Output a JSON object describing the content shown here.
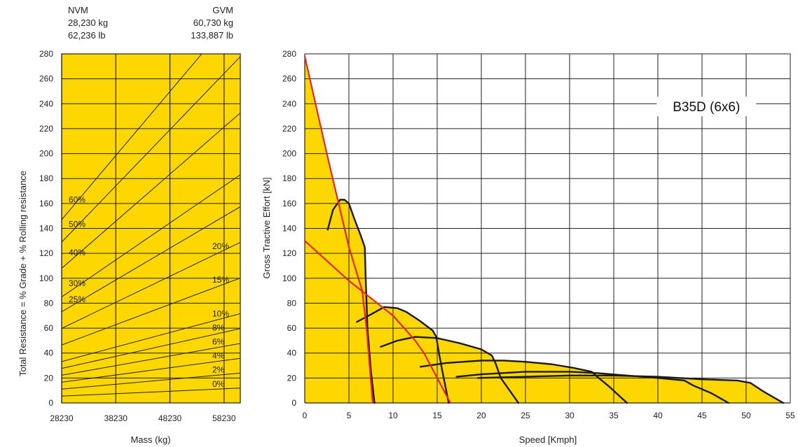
{
  "header": {
    "nvm": {
      "label": "NVM",
      "kg": "28,230 kg",
      "lb": "62,236 lb"
    },
    "gvm": {
      "label": "GVM",
      "kg": "60,730 kg",
      "lb": "133,887 lb"
    }
  },
  "colors": {
    "fill": "#FFD700",
    "grid": "#222222",
    "gear_curve": "#1a1a1a",
    "limit_curve": "#e8261c"
  },
  "chart_data": [
    {
      "type": "line",
      "xlabel": "Mass (kg)",
      "ylabel": "Total Resistance = % Grade + % Rolling resistance",
      "xlim": [
        28230,
        61230
      ],
      "ylim": [
        0,
        280
      ],
      "x_ticks": [
        "28230",
        "38230",
        "48230",
        "58230"
      ],
      "y_ticks": [
        "0",
        "20",
        "40",
        "60",
        "80",
        "100",
        "120",
        "140",
        "160",
        "180",
        "200",
        "220",
        "240",
        "260",
        "280"
      ],
      "grid": true,
      "series": [
        {
          "name": "0%",
          "label_side": "right",
          "x": [
            28230,
            61230
          ],
          "y": [
            5.5,
            11.9
          ]
        },
        {
          "name": "2%",
          "label_side": "right",
          "x": [
            28230,
            61230
          ],
          "y": [
            11.1,
            23.9
          ]
        },
        {
          "name": "4%",
          "label_side": "right",
          "x": [
            28230,
            61230
          ],
          "y": [
            16.6,
            35.8
          ]
        },
        {
          "name": "6%",
          "label_side": "right",
          "x": [
            28230,
            61230
          ],
          "y": [
            22.2,
            47.7
          ]
        },
        {
          "name": "8%",
          "label_side": "right",
          "x": [
            28230,
            61230
          ],
          "y": [
            27.7,
            59.6
          ]
        },
        {
          "name": "10%",
          "label_side": "right",
          "x": [
            28230,
            61230
          ],
          "y": [
            33.2,
            71.6
          ]
        },
        {
          "name": "15%",
          "label_side": "right",
          "x": [
            28230,
            61230
          ],
          "y": [
            46.5,
            100.2
          ]
        },
        {
          "name": "20%",
          "label_side": "right",
          "x": [
            28230,
            61230
          ],
          "y": [
            59.8,
            128.8
          ]
        },
        {
          "name": "25%",
          "label_side": "left",
          "x": [
            28230,
            61230
          ],
          "y": [
            73.1,
            157.4
          ]
        },
        {
          "name": "30%",
          "label_side": "left",
          "x": [
            28230,
            61230
          ],
          "y": [
            85.0,
            183.0
          ]
        },
        {
          "name": "40%",
          "label_side": "left",
          "x": [
            28230,
            61230
          ],
          "y": [
            108.0,
            232.6
          ]
        },
        {
          "name": "50%",
          "label_side": "left",
          "x": [
            28230,
            61230
          ],
          "y": [
            129.0,
            277.8
          ]
        },
        {
          "name": "60%",
          "label_side": "left",
          "x": [
            28230,
            61230
          ],
          "y": [
            147.0,
            316.6
          ]
        }
      ]
    },
    {
      "type": "line",
      "title": "B35D (6x6)",
      "xlabel": "Speed [Kmph]",
      "ylabel": "Gross Tractive Effort [kN]",
      "xlim": [
        0,
        55
      ],
      "ylim": [
        0,
        280
      ],
      "x_ticks": [
        "0",
        "5",
        "10",
        "15",
        "20",
        "25",
        "30",
        "35",
        "40",
        "45",
        "50",
        "55"
      ],
      "y_ticks": [
        "0",
        "20",
        "40",
        "60",
        "80",
        "100",
        "120",
        "140",
        "160",
        "180",
        "200",
        "220",
        "240",
        "260",
        "280"
      ],
      "grid": true,
      "filled_envelope": true,
      "series": [
        {
          "role": "gear",
          "x": [
            2.6,
            3.2,
            4.0,
            4.5,
            5.0,
            5.6,
            6.3,
            6.8,
            6.9,
            7.1,
            7.5,
            7.9
          ],
          "y": [
            139,
            155,
            163,
            163,
            160,
            148,
            135,
            125,
            100,
            60,
            25,
            0
          ]
        },
        {
          "role": "gear",
          "x": [
            5.9,
            7.5,
            9.0,
            10.5,
            11.5,
            13.0,
            14.5,
            14.9,
            15.2,
            15.6,
            16.3
          ],
          "y": [
            65,
            71,
            77,
            76,
            73,
            66,
            58,
            53,
            40,
            25,
            0
          ]
        },
        {
          "role": "gear",
          "x": [
            8.6,
            10.5,
            12.5,
            15.0,
            17.5,
            20.0,
            21.2,
            21.6,
            22.2,
            23.0,
            24.2
          ],
          "y": [
            45,
            50,
            53,
            52,
            48,
            43,
            38,
            32,
            20,
            12,
            0
          ]
        },
        {
          "role": "gear",
          "x": [
            13.1,
            16.0,
            20.0,
            22.5,
            25.0,
            28.0,
            30.5,
            32.5,
            33.3,
            34.5,
            36.5
          ],
          "y": [
            29,
            32,
            34,
            34,
            33,
            31,
            28,
            25,
            20,
            13,
            0
          ]
        },
        {
          "role": "gear",
          "x": [
            17.2,
            20.0,
            25.0,
            30.0,
            33.0,
            36.5,
            40.0,
            43.0,
            44.0,
            46.0,
            48.0
          ],
          "y": [
            21,
            23,
            25,
            25,
            24,
            22,
            20,
            18,
            14,
            8,
            0
          ]
        },
        {
          "role": "gear",
          "x": [
            19.6,
            25.0,
            30.0,
            35.0,
            40.0,
            45.0,
            49.0,
            50.5,
            52.0,
            54.2
          ],
          "y": [
            20,
            21,
            22,
            22,
            21,
            19,
            18,
            16,
            9,
            0
          ]
        },
        {
          "role": "limit",
          "x": [
            0,
            2.5,
            5.0,
            6.5,
            7.0,
            7.4,
            7.7
          ],
          "y": [
            278,
            200,
            125,
            90,
            60,
            25,
            0
          ]
        },
        {
          "role": "limit",
          "x": [
            0,
            5.0,
            10.0,
            12.5,
            13.5,
            15.0,
            16.5
          ],
          "y": [
            130,
            98,
            70,
            50,
            40,
            20,
            0
          ]
        }
      ]
    }
  ]
}
